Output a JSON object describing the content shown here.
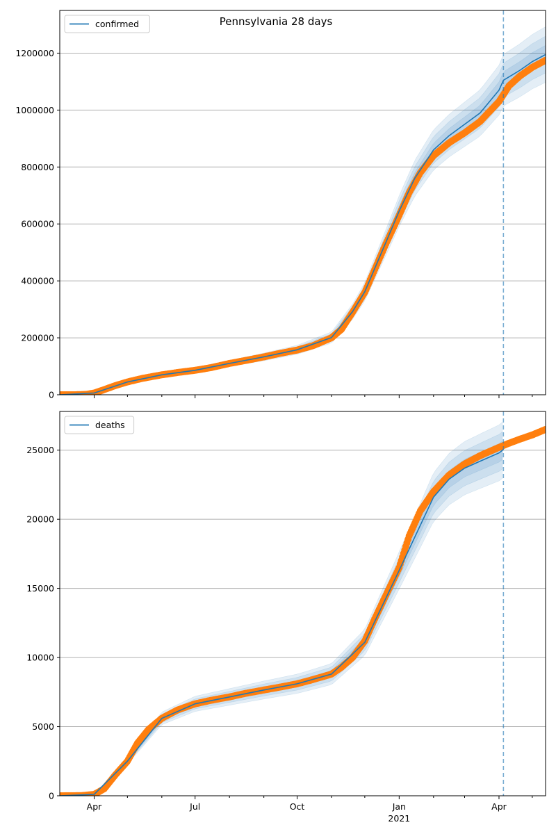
{
  "figure": {
    "title": "Pennsylvania 28 days"
  },
  "colors": {
    "model": "#1f77b4",
    "observed": "#ff7f0e",
    "band": "#1f77b4",
    "grid": "#b0b0b0",
    "cutoff": "#1f77b4"
  },
  "x_axis": {
    "tick_labels": [
      "Apr",
      "Jul",
      "Oct",
      "Jan",
      "Apr"
    ],
    "year_label": "2021"
  },
  "chart_data": [
    {
      "type": "line",
      "legend": "confirmed",
      "legend_position": "top-left",
      "grid": "horizontal",
      "x_range": [
        "2020-03-01",
        "2021-05-13"
      ],
      "ylim": [
        0,
        1350000
      ],
      "yticks": [
        0,
        200000,
        400000,
        600000,
        800000,
        1000000,
        1200000
      ],
      "cutoff_date": "2021-04-05",
      "observed_points": [
        [
          "2020-03-01",
          0
        ],
        [
          "2020-03-15",
          100
        ],
        [
          "2020-03-25",
          1500
        ],
        [
          "2020-04-01",
          6000
        ],
        [
          "2020-04-10",
          18000
        ],
        [
          "2020-04-20",
          32000
        ],
        [
          "2020-05-01",
          45000
        ],
        [
          "2020-05-15",
          58000
        ],
        [
          "2020-06-01",
          70000
        ],
        [
          "2020-06-15",
          78000
        ],
        [
          "2020-07-01",
          86000
        ],
        [
          "2020-07-15",
          95000
        ],
        [
          "2020-08-01",
          110000
        ],
        [
          "2020-08-15",
          120000
        ],
        [
          "2020-09-01",
          133000
        ],
        [
          "2020-09-15",
          145000
        ],
        [
          "2020-10-01",
          157000
        ],
        [
          "2020-10-15",
          172000
        ],
        [
          "2020-11-01",
          200000
        ],
        [
          "2020-11-10",
          230000
        ],
        [
          "2020-11-20",
          290000
        ],
        [
          "2020-12-01",
          360000
        ],
        [
          "2020-12-10",
          440000
        ],
        [
          "2020-12-20",
          530000
        ],
        [
          "2021-01-01",
          630000
        ],
        [
          "2021-01-10",
          710000
        ],
        [
          "2021-01-20",
          780000
        ],
        [
          "2021-02-01",
          840000
        ],
        [
          "2021-02-15",
          885000
        ],
        [
          "2021-03-01",
          920000
        ],
        [
          "2021-03-15",
          960000
        ],
        [
          "2021-04-01",
          1030000
        ],
        [
          "2021-04-10",
          1085000
        ],
        [
          "2021-04-20",
          1120000
        ],
        [
          "2021-05-01",
          1150000
        ],
        [
          "2021-05-13",
          1175000
        ]
      ],
      "model_line": [
        [
          "2020-03-01",
          0
        ],
        [
          "2020-04-01",
          6000
        ],
        [
          "2020-05-01",
          45000
        ],
        [
          "2020-06-01",
          70000
        ],
        [
          "2020-07-01",
          86000
        ],
        [
          "2020-08-01",
          110000
        ],
        [
          "2020-09-01",
          133000
        ],
        [
          "2020-10-01",
          158000
        ],
        [
          "2020-11-01",
          201000
        ],
        [
          "2020-11-20",
          292000
        ],
        [
          "2020-12-01",
          362000
        ],
        [
          "2020-12-20",
          535000
        ],
        [
          "2021-01-01",
          645000
        ],
        [
          "2021-01-15",
          760000
        ],
        [
          "2021-02-01",
          860000
        ],
        [
          "2021-02-15",
          910000
        ],
        [
          "2021-03-01",
          950000
        ],
        [
          "2021-03-15",
          990000
        ],
        [
          "2021-04-01",
          1070000
        ],
        [
          "2021-04-05",
          1105000
        ]
      ],
      "projection_line": [
        [
          "2021-04-05",
          1105000
        ],
        [
          "2021-04-20",
          1140000
        ],
        [
          "2021-05-01",
          1170000
        ],
        [
          "2021-05-13",
          1195000
        ]
      ]
    },
    {
      "type": "line",
      "legend": "deaths",
      "legend_position": "top-left",
      "grid": "horizontal",
      "x_range": [
        "2020-03-01",
        "2021-05-13"
      ],
      "ylim": [
        0,
        27800
      ],
      "yticks": [
        0,
        5000,
        10000,
        15000,
        20000,
        25000
      ],
      "cutoff_date": "2021-04-05",
      "observed_points": [
        [
          "2020-03-01",
          0
        ],
        [
          "2020-03-20",
          10
        ],
        [
          "2020-04-01",
          100
        ],
        [
          "2020-04-10",
          500
        ],
        [
          "2020-04-20",
          1500
        ],
        [
          "2020-05-01",
          2500
        ],
        [
          "2020-05-10",
          3800
        ],
        [
          "2020-05-20",
          4800
        ],
        [
          "2020-06-01",
          5600
        ],
        [
          "2020-06-15",
          6200
        ],
        [
          "2020-07-01",
          6650
        ],
        [
          "2020-07-15",
          6900
        ],
        [
          "2020-08-01",
          7150
        ],
        [
          "2020-08-15",
          7400
        ],
        [
          "2020-09-01",
          7650
        ],
        [
          "2020-09-15",
          7850
        ],
        [
          "2020-10-01",
          8100
        ],
        [
          "2020-10-15",
          8400
        ],
        [
          "2020-11-01",
          8800
        ],
        [
          "2020-11-10",
          9300
        ],
        [
          "2020-11-20",
          10000
        ],
        [
          "2020-12-01",
          11200
        ],
        [
          "2020-12-10",
          12800
        ],
        [
          "2020-12-20",
          14500
        ],
        [
          "2021-01-01",
          16500
        ],
        [
          "2021-01-10",
          18800
        ],
        [
          "2021-01-20",
          20600
        ],
        [
          "2021-02-01",
          22000
        ],
        [
          "2021-02-15",
          23200
        ],
        [
          "2021-03-01",
          24000
        ],
        [
          "2021-03-15",
          24600
        ],
        [
          "2021-04-01",
          25200
        ],
        [
          "2021-04-10",
          25500
        ],
        [
          "2021-04-20",
          25800
        ],
        [
          "2021-05-01",
          26100
        ],
        [
          "2021-05-13",
          26500
        ]
      ],
      "model_line": [
        [
          "2020-03-01",
          0
        ],
        [
          "2020-04-01",
          100
        ],
        [
          "2020-05-01",
          2500
        ],
        [
          "2020-06-01",
          5600
        ],
        [
          "2020-07-01",
          6650
        ],
        [
          "2020-08-01",
          7150
        ],
        [
          "2020-09-01",
          7650
        ],
        [
          "2020-10-01",
          8100
        ],
        [
          "2020-11-01",
          8800
        ],
        [
          "2020-12-01",
          11100
        ],
        [
          "2021-01-01",
          16300
        ],
        [
          "2021-02-01",
          21600
        ],
        [
          "2021-02-15",
          22900
        ],
        [
          "2021-03-01",
          23700
        ],
        [
          "2021-03-15",
          24200
        ],
        [
          "2021-04-01",
          24800
        ],
        [
          "2021-04-05",
          25050
        ]
      ]
    }
  ]
}
